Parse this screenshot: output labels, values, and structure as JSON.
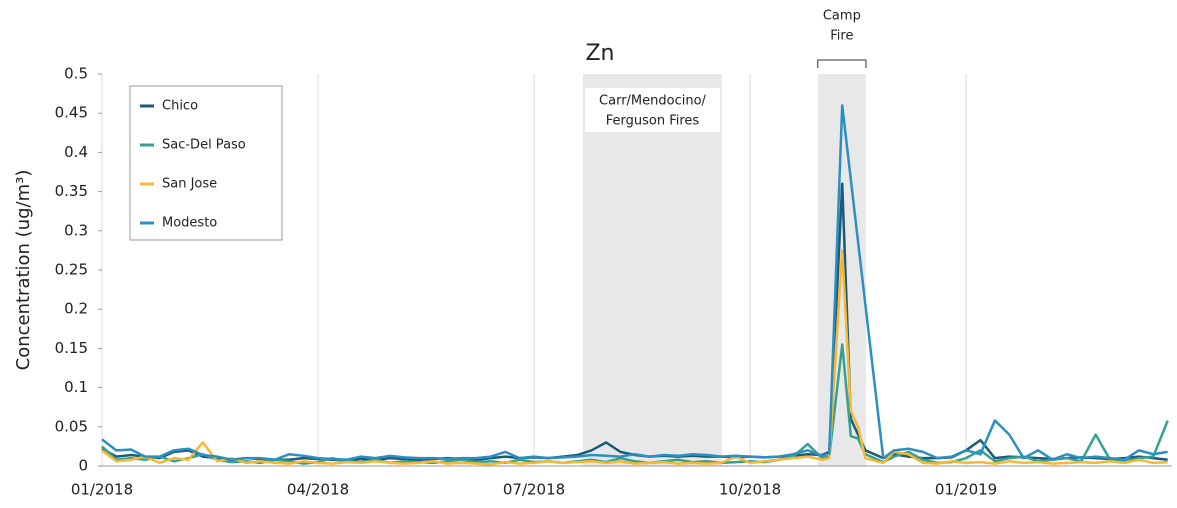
{
  "chart_data": {
    "type": "line",
    "title": "Zn",
    "y_label": "Concentration (ug/m³)",
    "x": [
      0,
      0.2,
      0.4,
      0.6,
      0.8,
      1,
      1.2,
      1.4,
      1.6,
      1.8,
      2,
      2.2,
      2.4,
      2.6,
      2.8,
      3,
      3.2,
      3.4,
      3.6,
      3.8,
      4,
      4.2,
      4.4,
      4.6,
      4.8,
      5,
      5.2,
      5.4,
      5.6,
      5.8,
      6,
      6.2,
      6.4,
      6.6,
      6.8,
      7,
      7.2,
      7.4,
      7.6,
      7.8,
      8,
      8.2,
      8.4,
      8.6,
      8.8,
      9,
      9.2,
      9.4,
      9.6,
      9.8,
      10,
      10.1,
      10.28,
      10.4,
      10.5,
      10.6,
      10.85,
      11,
      11.2,
      11.4,
      11.6,
      11.8,
      12,
      12.2,
      12.4,
      12.6,
      12.8,
      13,
      13.2,
      13.4,
      13.6,
      13.8,
      14,
      14.2,
      14.4,
      14.6,
      14.8
    ],
    "xlim": [
      0,
      14.86
    ],
    "xticks": [
      {
        "value": 0,
        "label": "01/2018"
      },
      {
        "value": 3,
        "label": "04/2018"
      },
      {
        "value": 6,
        "label": "07/2018"
      },
      {
        "value": 9,
        "label": "10/2018"
      },
      {
        "value": 12,
        "label": "01/2019"
      }
    ],
    "ylim": [
      0,
      0.5
    ],
    "yticks": [
      0,
      0.05,
      0.1,
      0.15,
      0.2,
      0.25,
      0.3,
      0.35,
      0.4,
      0.45,
      0.5
    ],
    "x_grid": true,
    "legend": "upper left",
    "shaded_regions": [
      {
        "label": [
          "Carr/Mendocino/",
          "Ferguson Fires"
        ],
        "xlim": [
          6.68,
          8.61
        ]
      },
      {
        "label": [
          "Camp",
          "Fire"
        ],
        "xlim": [
          9.94,
          10.61
        ],
        "bracket": true
      }
    ],
    "series": [
      {
        "name": "Chico",
        "color": "#1b5a78",
        "values": [
          0.022,
          0.012,
          0.014,
          0.012,
          0.01,
          0.018,
          0.02,
          0.012,
          0.01,
          0.008,
          0.01,
          0.009,
          0.008,
          0.008,
          0.01,
          0.009,
          0.008,
          0.007,
          0.009,
          0.008,
          0.01,
          0.009,
          0.008,
          0.009,
          0.01,
          0.009,
          0.008,
          0.01,
          0.012,
          0.01,
          0.011,
          0.01,
          0.012,
          0.014,
          0.02,
          0.03,
          0.018,
          0.014,
          0.012,
          0.013,
          0.012,
          0.013,
          0.012,
          0.012,
          0.011,
          0.012,
          0.011,
          0.012,
          0.013,
          0.015,
          0.014,
          0.018,
          0.36,
          0.06,
          0.04,
          0.02,
          0.01,
          0.015,
          0.012,
          0.01,
          0.01,
          0.011,
          0.02,
          0.033,
          0.01,
          0.012,
          0.011,
          0.01,
          0.009,
          0.01,
          0.011,
          0.01,
          0.009,
          0.01,
          0.012,
          0.01,
          0.008
        ]
      },
      {
        "name": "Sac-Del Paso",
        "color": "#34a28f",
        "values": [
          0.025,
          0.008,
          0.01,
          0.008,
          0.012,
          0.006,
          0.01,
          0.015,
          0.008,
          0.005,
          0.006,
          0.004,
          0.008,
          0.006,
          0.003,
          0.005,
          0.01,
          0.006,
          0.005,
          0.008,
          0.004,
          0.006,
          0.005,
          0.004,
          0.006,
          0.008,
          0.005,
          0.006,
          0.004,
          0.008,
          0.005,
          0.006,
          0.004,
          0.006,
          0.008,
          0.005,
          0.01,
          0.006,
          0.004,
          0.006,
          0.008,
          0.005,
          0.006,
          0.004,
          0.005,
          0.006,
          0.005,
          0.008,
          0.012,
          0.028,
          0.01,
          0.012,
          0.155,
          0.038,
          0.035,
          0.015,
          0.005,
          0.012,
          0.018,
          0.008,
          0.004,
          0.005,
          0.01,
          0.02,
          0.006,
          0.01,
          0.012,
          0.006,
          0.008,
          0.01,
          0.006,
          0.04,
          0.008,
          0.006,
          0.01,
          0.012,
          0.058
        ]
      },
      {
        "name": "San Jose",
        "color": "#f6b733",
        "values": [
          0.02,
          0.006,
          0.008,
          0.012,
          0.004,
          0.01,
          0.008,
          0.03,
          0.006,
          0.01,
          0.004,
          0.006,
          0.004,
          0.003,
          0.006,
          0.004,
          0.003,
          0.005,
          0.004,
          0.006,
          0.004,
          0.003,
          0.004,
          0.006,
          0.003,
          0.004,
          0.003,
          0.002,
          0.005,
          0.003,
          0.004,
          0.006,
          0.004,
          0.005,
          0.006,
          0.004,
          0.006,
          0.003,
          0.004,
          0.005,
          0.003,
          0.004,
          0.003,
          0.004,
          0.012,
          0.004,
          0.006,
          0.008,
          0.01,
          0.012,
          0.008,
          0.01,
          0.275,
          0.07,
          0.05,
          0.01,
          0.004,
          0.018,
          0.015,
          0.004,
          0.003,
          0.006,
          0.004,
          0.005,
          0.003,
          0.006,
          0.004,
          0.005,
          0.003,
          0.004,
          0.005,
          0.004,
          0.006,
          0.004,
          0.008,
          0.004,
          0.005
        ]
      },
      {
        "name": "Modesto",
        "color": "#2b8fc3",
        "values": [
          0.034,
          0.02,
          0.021,
          0.012,
          0.012,
          0.02,
          0.022,
          0.014,
          0.012,
          0.008,
          0.01,
          0.01,
          0.008,
          0.015,
          0.013,
          0.01,
          0.009,
          0.008,
          0.012,
          0.01,
          0.013,
          0.011,
          0.01,
          0.01,
          0.009,
          0.01,
          0.01,
          0.012,
          0.018,
          0.01,
          0.012,
          0.01,
          0.011,
          0.012,
          0.014,
          0.013,
          0.012,
          0.015,
          0.012,
          0.014,
          0.013,
          0.015,
          0.014,
          0.012,
          0.013,
          0.012,
          0.011,
          0.012,
          0.015,
          0.02,
          0.013,
          0.016,
          0.46,
          0.365,
          0.286,
          0.207,
          0.01,
          0.02,
          0.022,
          0.018,
          0.01,
          0.012,
          0.02,
          0.015,
          0.058,
          0.04,
          0.01,
          0.02,
          0.008,
          0.015,
          0.01,
          0.012,
          0.01,
          0.008,
          0.02,
          0.015,
          0.018
        ]
      }
    ]
  }
}
